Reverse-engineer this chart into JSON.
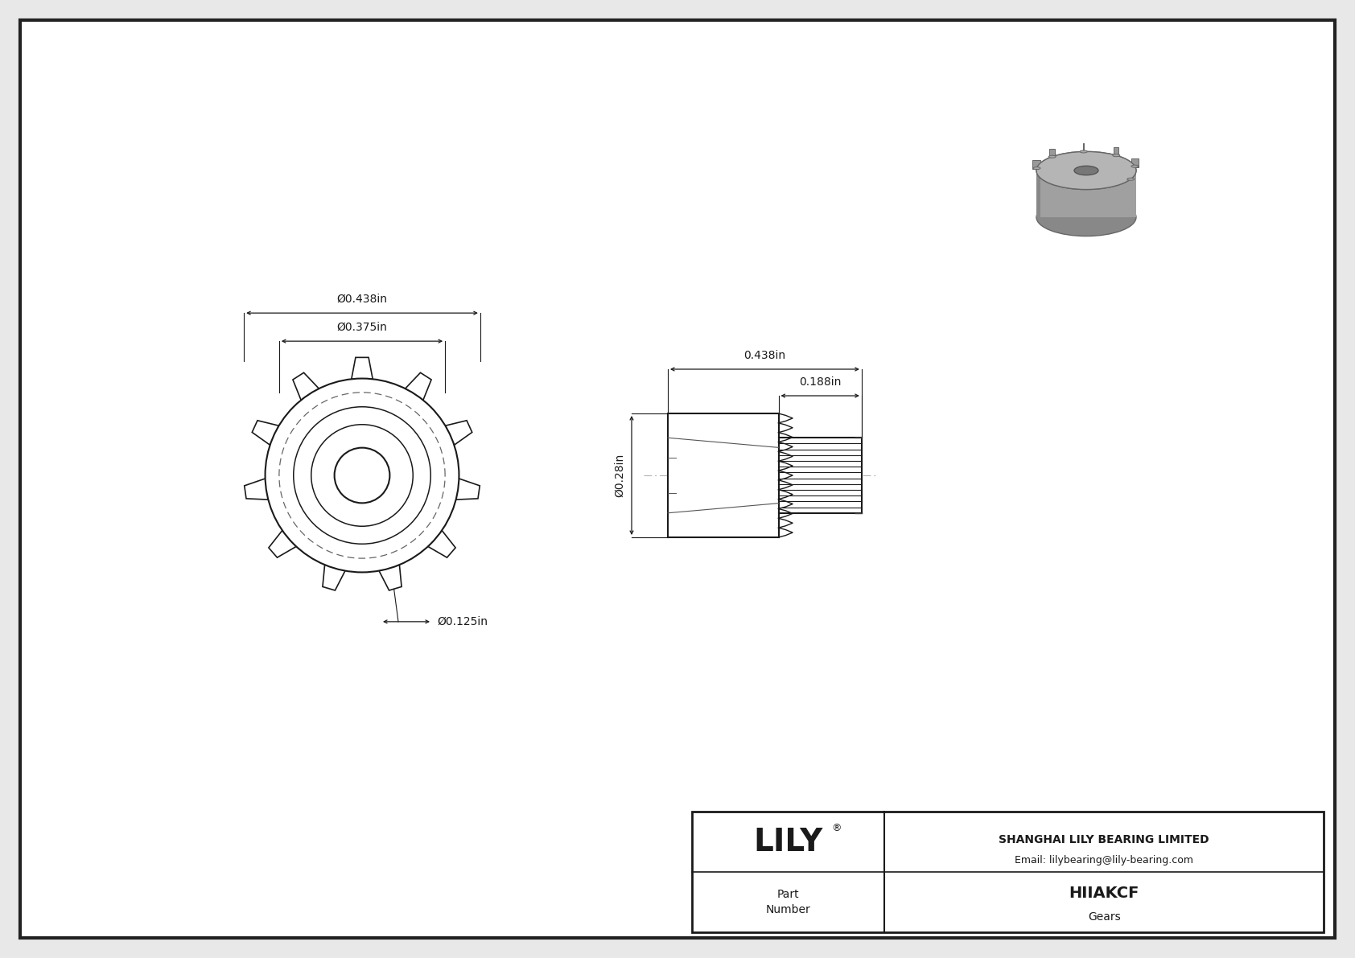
{
  "bg_color": "#e8e8e8",
  "border_color": "#222222",
  "line_color": "#1a1a1a",
  "dashed_color": "#666666",
  "dim_color": "#1a1a1a",
  "title": "HIIAKCF",
  "subtitle": "Gears",
  "company": "SHANGHAI LILY BEARING LIMITED",
  "email": "Email: lilybearing@lily-bearing.com",
  "brand": "LILY",
  "part_label": "Part\nNumber",
  "dim_outer": "Ø0.438in",
  "dim_pitch": "Ø0.375in",
  "dim_bore": "Ø0.125in",
  "dim_height": "Ø0.28in",
  "dim_total_len": "0.438in",
  "dim_hub_len": "0.188in",
  "num_teeth": 11,
  "scale": 5.5
}
